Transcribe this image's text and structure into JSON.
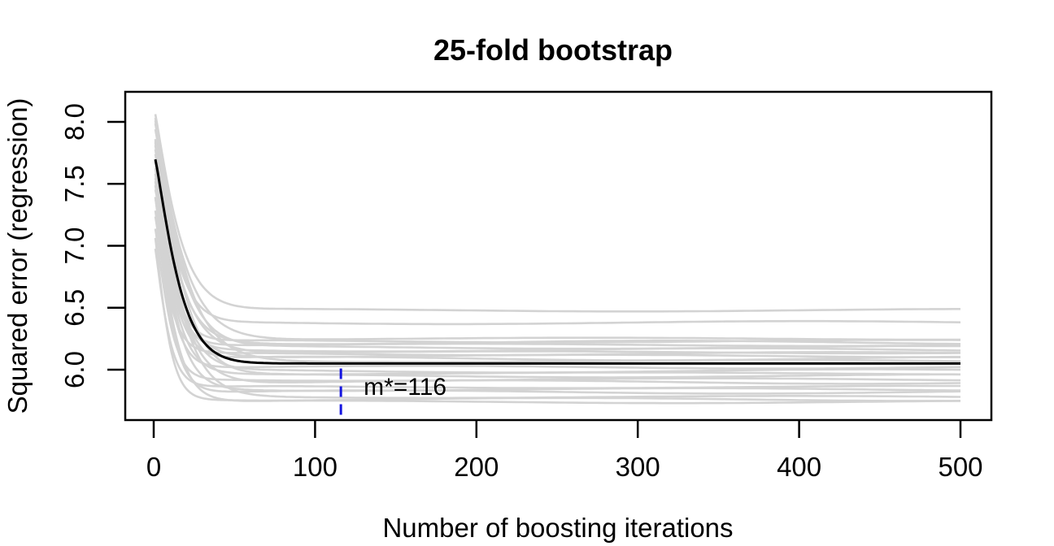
{
  "chart_data": {
    "type": "line",
    "title": "25-fold bootstrap",
    "xlabel": "Number of boosting iterations",
    "ylabel": "Squared error (regression)",
    "x_ticks": [
      0,
      100,
      200,
      300,
      400,
      500
    ],
    "x_tick_labels": [
      "0",
      "100",
      "200",
      "300",
      "400",
      "500"
    ],
    "y_ticks": [
      6.0,
      6.5,
      7.0,
      7.5,
      8.0
    ],
    "y_tick_labels": [
      "6.0",
      "6.5",
      "7.0",
      "7.5",
      "8.0"
    ],
    "xlim": [
      -19,
      520
    ],
    "ylim": [
      5.59,
      8.24
    ],
    "x_data_range": [
      1,
      500
    ],
    "grid": false,
    "legend": "none",
    "n_folds": 25,
    "colors": {
      "bootstrap_line": "#D3D3D3",
      "mean_line": "#000000",
      "annotation": "#1414E0",
      "axis": "#000000",
      "background": "#FFFFFF"
    },
    "annotation": {
      "label": "m*=116",
      "x": 116,
      "line_y_range": [
        5.63,
        6.01
      ],
      "style": "dashed"
    },
    "mean_series": {
      "name": "mean-bootstrap-risk",
      "start_value": 7.75,
      "final_value": 6.05,
      "decay_tau": 16,
      "decay_shape": 1.25,
      "wiggle_amplitude": 0,
      "wiggle_phase": 0,
      "key_points": [
        [
          1,
          7.75
        ],
        [
          10,
          7.15
        ],
        [
          20,
          6.62
        ],
        [
          30,
          6.28
        ],
        [
          50,
          6.1
        ],
        [
          75,
          6.06
        ],
        [
          116,
          6.05
        ],
        [
          200,
          6.05
        ],
        [
          500,
          6.05
        ]
      ]
    },
    "bootstrap_series": [
      {
        "start_value": 8.12,
        "final_value": 6.48,
        "decay_tau": 16,
        "decay_shape": 1.2,
        "wiggle_amplitude": 0.01,
        "wiggle_phase": 0.5
      },
      {
        "start_value": 7.9,
        "final_value": 6.38,
        "decay_tau": 14,
        "decay_shape": 1.25,
        "wiggle_amplitude": 0.012,
        "wiggle_phase": 2.1
      },
      {
        "start_value": 8.05,
        "final_value": 6.25,
        "decay_tau": 18,
        "decay_shape": 1.15,
        "wiggle_amplitude": 0.008,
        "wiggle_phase": 4.0
      },
      {
        "start_value": 7.6,
        "final_value": 6.23,
        "decay_tau": 12,
        "decay_shape": 1.3,
        "wiggle_amplitude": 0.01,
        "wiggle_phase": 1.2
      },
      {
        "start_value": 7.8,
        "final_value": 6.22,
        "decay_tau": 15,
        "decay_shape": 1.2,
        "wiggle_amplitude": 0.014,
        "wiggle_phase": 3.3
      },
      {
        "start_value": 7.7,
        "final_value": 6.2,
        "decay_tau": 11,
        "decay_shape": 1.25,
        "wiggle_amplitude": 0.009,
        "wiggle_phase": 5.1
      },
      {
        "start_value": 8.0,
        "final_value": 6.18,
        "decay_tau": 17,
        "decay_shape": 1.2,
        "wiggle_amplitude": 0.011,
        "wiggle_phase": 0.9
      },
      {
        "start_value": 7.5,
        "final_value": 6.16,
        "decay_tau": 13,
        "decay_shape": 1.3,
        "wiggle_amplitude": 0.013,
        "wiggle_phase": 2.7
      },
      {
        "start_value": 7.88,
        "final_value": 6.14,
        "decay_tau": 16,
        "decay_shape": 1.15,
        "wiggle_amplitude": 0.008,
        "wiggle_phase": 4.6
      },
      {
        "start_value": 7.3,
        "final_value": 6.13,
        "decay_tau": 10,
        "decay_shape": 1.25,
        "wiggle_amplitude": 0.012,
        "wiggle_phase": 1.8
      },
      {
        "start_value": 7.85,
        "final_value": 6.11,
        "decay_tau": 14,
        "decay_shape": 1.2,
        "wiggle_amplitude": 0.01,
        "wiggle_phase": 3.9
      },
      {
        "start_value": 7.65,
        "final_value": 6.09,
        "decay_tau": 12,
        "decay_shape": 1.25,
        "wiggle_amplitude": 0.015,
        "wiggle_phase": 0.3
      },
      {
        "start_value": 8.1,
        "final_value": 6.07,
        "decay_tau": 19,
        "decay_shape": 1.15,
        "wiggle_amplitude": 0.009,
        "wiggle_phase": 2.4
      },
      {
        "start_value": 7.45,
        "final_value": 6.02,
        "decay_tau": 11,
        "decay_shape": 1.3,
        "wiggle_amplitude": 0.011,
        "wiggle_phase": 5.5
      },
      {
        "start_value": 7.75,
        "final_value": 5.99,
        "decay_tau": 15,
        "decay_shape": 1.2,
        "wiggle_amplitude": 0.013,
        "wiggle_phase": 1.5
      },
      {
        "start_value": 7.55,
        "final_value": 5.97,
        "decay_tau": 13,
        "decay_shape": 1.25,
        "wiggle_amplitude": 0.008,
        "wiggle_phase": 3.6
      },
      {
        "start_value": 8.08,
        "final_value": 5.95,
        "decay_tau": 17,
        "decay_shape": 1.2,
        "wiggle_amplitude": 0.012,
        "wiggle_phase": 0.7
      },
      {
        "start_value": 7.2,
        "final_value": 5.92,
        "decay_tau": 10,
        "decay_shape": 1.3,
        "wiggle_amplitude": 0.01,
        "wiggle_phase": 2.9
      },
      {
        "start_value": 7.95,
        "final_value": 5.9,
        "decay_tau": 15,
        "decay_shape": 1.15,
        "wiggle_amplitude": 0.014,
        "wiggle_phase": 4.8
      },
      {
        "start_value": 7.05,
        "final_value": 5.86,
        "decay_tau": 9,
        "decay_shape": 1.25,
        "wiggle_amplitude": 0.009,
        "wiggle_phase": 1.0
      },
      {
        "start_value": 7.6,
        "final_value": 5.84,
        "decay_tau": 13,
        "decay_shape": 1.2,
        "wiggle_amplitude": 0.011,
        "wiggle_phase": 3.1
      },
      {
        "start_value": 7.35,
        "final_value": 5.82,
        "decay_tau": 11,
        "decay_shape": 1.3,
        "wiggle_amplitude": 0.013,
        "wiggle_phase": 5.8
      },
      {
        "start_value": 7.92,
        "final_value": 5.78,
        "decay_tau": 16,
        "decay_shape": 1.15,
        "wiggle_amplitude": 0.008,
        "wiggle_phase": 2.2
      },
      {
        "start_value": 7.15,
        "final_value": 5.76,
        "decay_tau": 9,
        "decay_shape": 1.25,
        "wiggle_amplitude": 0.012,
        "wiggle_phase": 4.2
      },
      {
        "start_value": 7.48,
        "final_value": 5.74,
        "decay_tau": 12,
        "decay_shape": 1.2,
        "wiggle_amplitude": 0.01,
        "wiggle_phase": 0.1
      }
    ]
  }
}
